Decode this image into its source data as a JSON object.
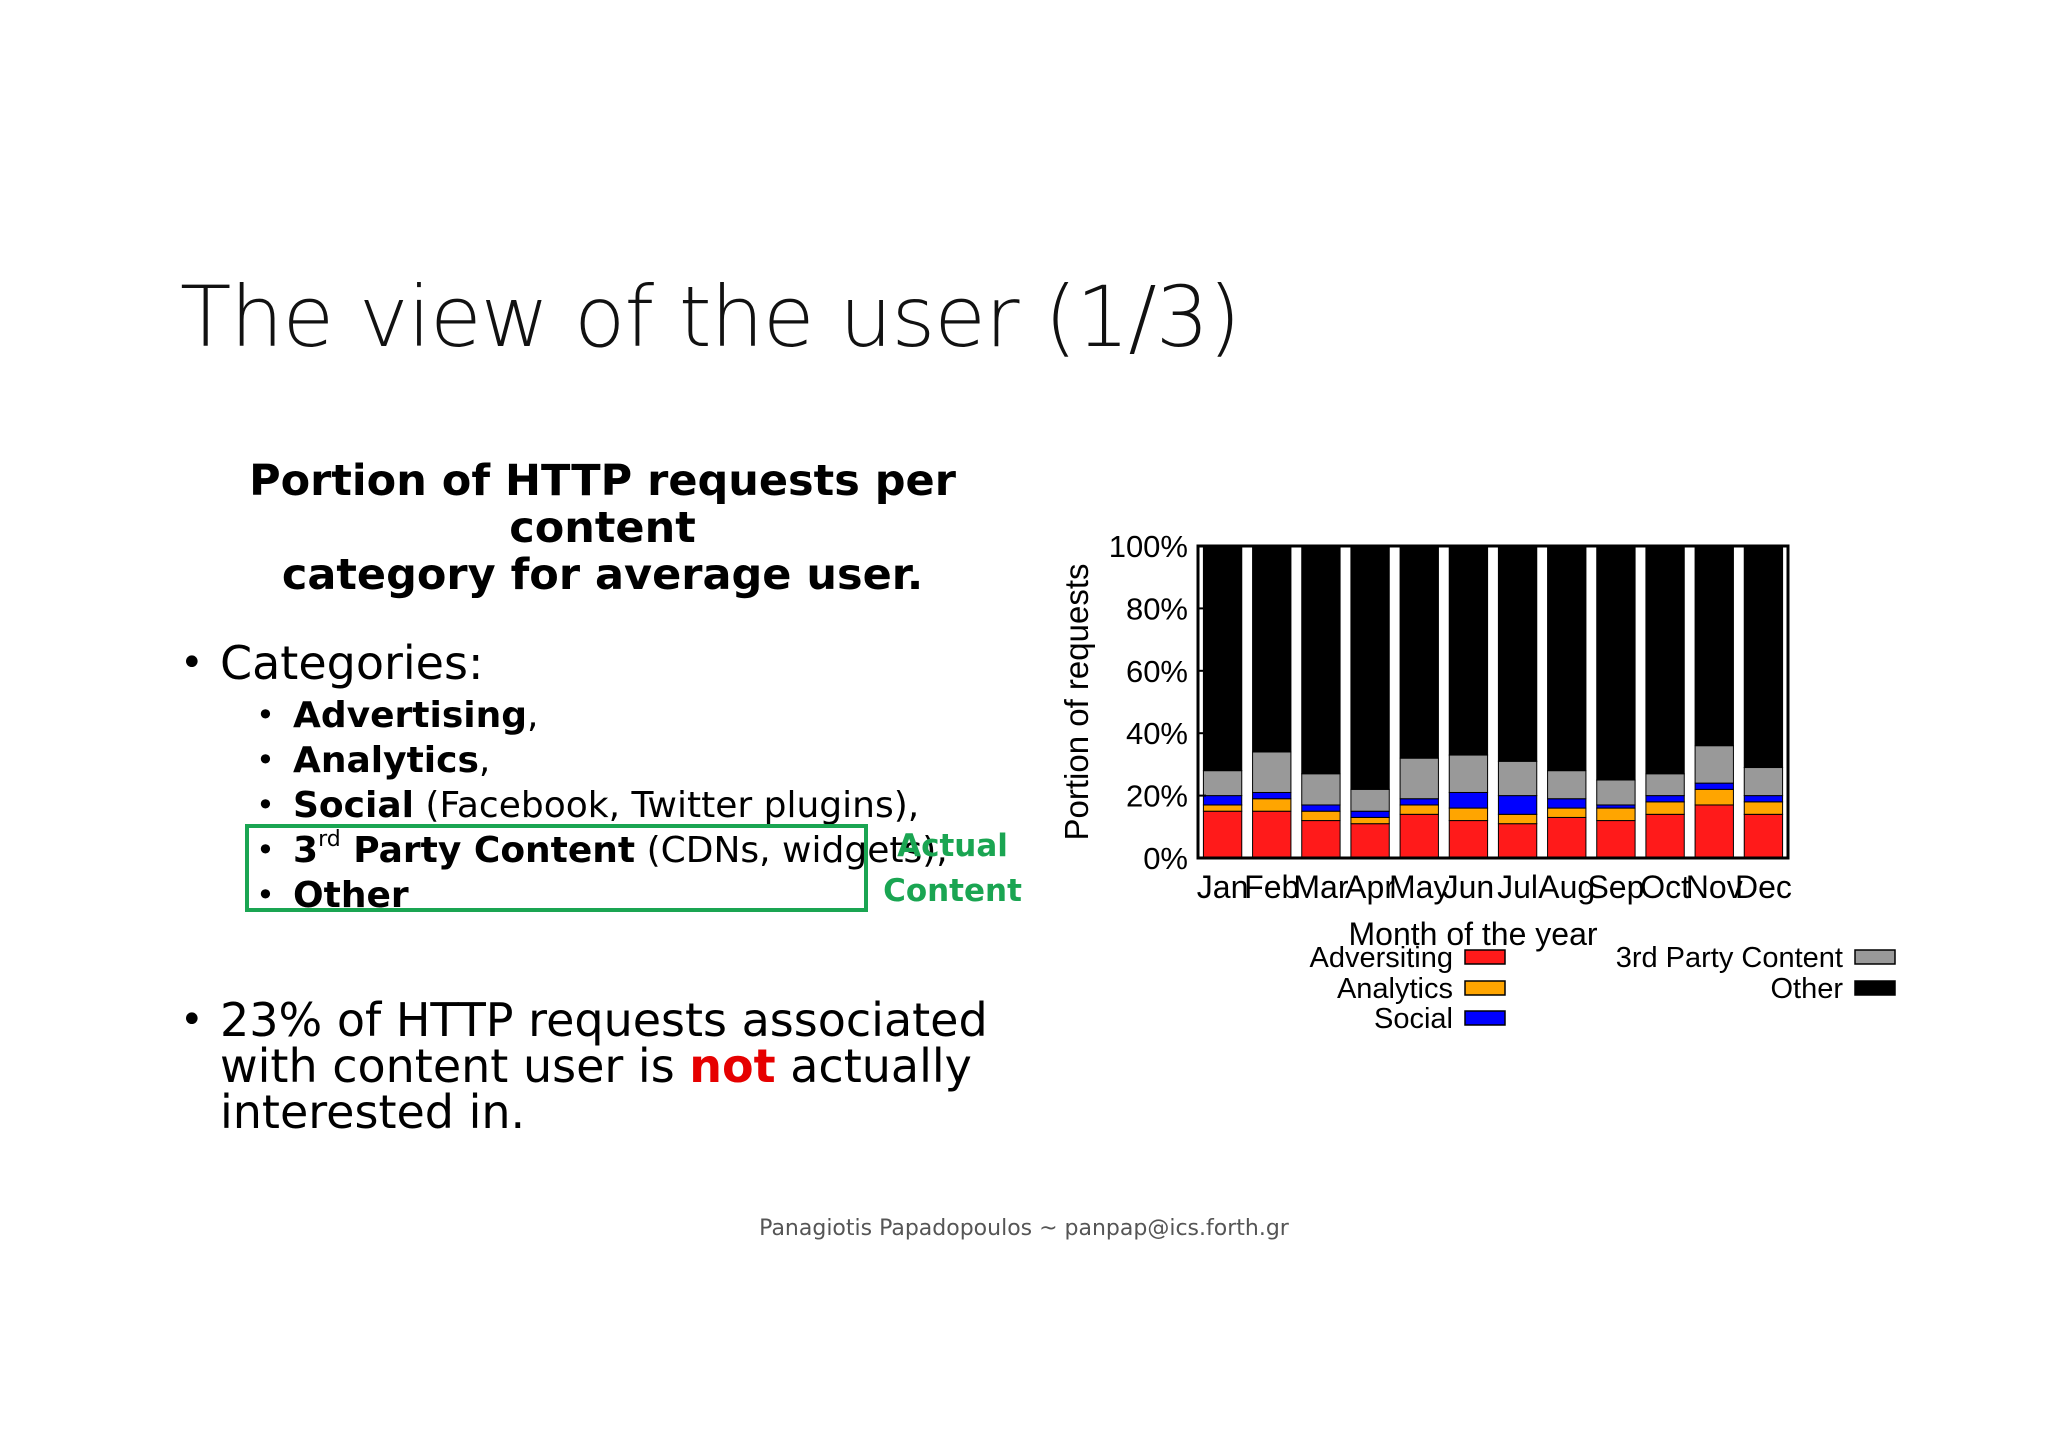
{
  "slide": {
    "title": "The view of the user (1/3)",
    "caption_line1": "Portion of HTTP requests per content",
    "caption_line2": "category for average user.",
    "bullet_categories": "Categories:",
    "items": [
      {
        "bold": "Advertising",
        "rest": ","
      },
      {
        "bold": "Analytics",
        "rest": ","
      },
      {
        "bold": "Social",
        "rest": " (Facebook, Twitter plugins),"
      },
      {
        "bold_prefix": "3",
        "sup": "rd",
        "bold": " Party Content",
        "rest": " (CDNs, widgets),"
      },
      {
        "bold": "Other",
        "rest": ""
      }
    ],
    "actual_label_1": "Actual",
    "actual_label_2": "Content",
    "stat_pre": "23% of HTTP requests associated with content user is ",
    "stat_highlight": "not",
    "stat_post": " actually interested in.",
    "footer": "Panagiotis Papadopoulos ~ panpap@ics.forth.gr",
    "bullet_glyph": "•"
  },
  "chart_data": {
    "type": "bar",
    "stacked": true,
    "categories": [
      "Jan",
      "Feb",
      "Mar",
      "Apr",
      "May",
      "Jun",
      "Jul",
      "Aug",
      "Sep",
      "Oct",
      "Nov",
      "Dec"
    ],
    "series": [
      {
        "name": "Adversiting",
        "color": "#ff1a1a",
        "values": [
          15,
          15,
          12,
          11,
          14,
          12,
          11,
          13,
          12,
          14,
          17,
          14
        ]
      },
      {
        "name": "Analytics",
        "color": "#ffa500",
        "values": [
          2,
          4,
          3,
          2,
          3,
          4,
          3,
          3,
          4,
          4,
          5,
          4
        ]
      },
      {
        "name": "Social",
        "color": "#0000ff",
        "values": [
          3,
          2,
          2,
          2,
          2,
          5,
          6,
          3,
          1,
          2,
          2,
          2
        ]
      },
      {
        "name": "3rd Party Content",
        "color": "#999999",
        "values": [
          8,
          13,
          10,
          7,
          13,
          12,
          11,
          9,
          8,
          7,
          12,
          9
        ]
      },
      {
        "name": "Other",
        "color": "#000000",
        "values": [
          72,
          66,
          73,
          78,
          68,
          67,
          69,
          72,
          75,
          73,
          64,
          71
        ]
      }
    ],
    "xlabel": "Month of the year",
    "ylabel": "Portion of requests",
    "yticks": [
      "0%",
      "20%",
      "40%",
      "60%",
      "80%",
      "100%"
    ],
    "ylim": [
      0,
      100
    ],
    "legend_position": "bottom"
  }
}
